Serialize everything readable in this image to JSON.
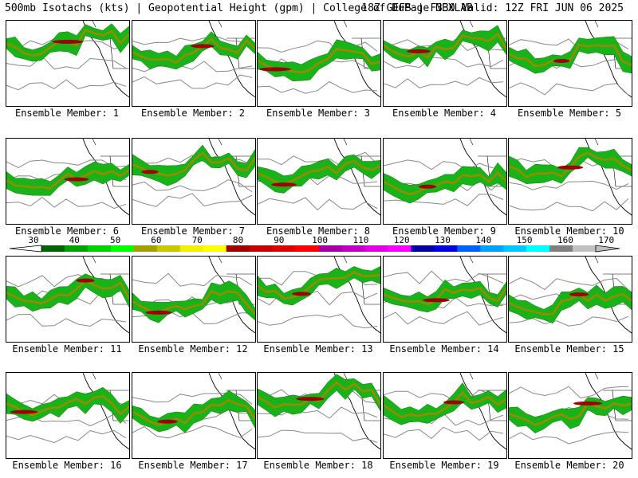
{
  "header": {
    "left_text": "500mb Isotachs (kts) | Geopotential Height (gpm) | College of DuPage NEXLAB",
    "right_text": "18Z GEFS | F330 Valid: 12Z FRI JUN 06 2025"
  },
  "members": [
    {
      "label": "Ensemble Member: 1"
    },
    {
      "label": "Ensemble Member: 2"
    },
    {
      "label": "Ensemble Member: 3"
    },
    {
      "label": "Ensemble Member: 4"
    },
    {
      "label": "Ensemble Member: 5"
    },
    {
      "label": "Ensemble Member: 6"
    },
    {
      "label": "Ensemble Member: 7"
    },
    {
      "label": "Ensemble Member: 8"
    },
    {
      "label": "Ensemble Member: 9"
    },
    {
      "label": "Ensemble Member: 10"
    },
    {
      "label": "Ensemble Member: 11"
    },
    {
      "label": "Ensemble Member: 12"
    },
    {
      "label": "Ensemble Member: 13"
    },
    {
      "label": "Ensemble Member: 14"
    },
    {
      "label": "Ensemble Member: 15"
    },
    {
      "label": "Ensemble Member: 16"
    },
    {
      "label": "Ensemble Member: 17"
    },
    {
      "label": "Ensemble Member: 18"
    },
    {
      "label": "Ensemble Member: 19"
    },
    {
      "label": "Ensemble Member: 20"
    }
  ],
  "colorbar": {
    "ticks": [
      "30",
      "40",
      "50",
      "60",
      "70",
      "80",
      "90",
      "100",
      "110",
      "120",
      "130",
      "140",
      "150",
      "160",
      "170"
    ],
    "colors": [
      "#006400",
      "#00a000",
      "#00d000",
      "#00ff00",
      "#a0a000",
      "#c8c800",
      "#f0f000",
      "#ffff00",
      "#a00000",
      "#c80000",
      "#e00000",
      "#ff0000",
      "#a000a0",
      "#c000c0",
      "#e000e0",
      "#ff00ff",
      "#0000a0",
      "#0000e0",
      "#0060ff",
      "#00a0ff",
      "#00c8ff",
      "#00ffff",
      "#808080",
      "#c0c0c0"
    ]
  }
}
